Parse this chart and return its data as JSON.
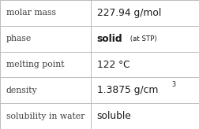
{
  "rows": [
    {
      "label": "molar mass",
      "value_parts": [
        {
          "text": "227.94 g/mol",
          "style": "normal"
        }
      ]
    },
    {
      "label": "phase",
      "value_parts": [
        {
          "text": "solid",
          "style": "bold"
        },
        {
          "text": " (at STP)",
          "style": "small"
        }
      ]
    },
    {
      "label": "melting point",
      "value_parts": [
        {
          "text": "122 °C",
          "style": "normal"
        }
      ]
    },
    {
      "label": "density",
      "value_parts": [
        {
          "text": "1.3875 g/cm",
          "style": "normal"
        },
        {
          "text": "3",
          "style": "super"
        }
      ]
    },
    {
      "label": "solubility in water",
      "value_parts": [
        {
          "text": "soluble",
          "style": "normal"
        }
      ]
    }
  ],
  "bg_color": "#ffffff",
  "border_color": "#bbbbbb",
  "label_color": "#404040",
  "value_color": "#1a1a1a",
  "label_fontsize": 7.8,
  "value_fontsize": 8.8,
  "small_fontsize": 6.2,
  "super_fontsize": 5.8,
  "col_split": 0.455,
  "fig_width": 2.53,
  "fig_height": 1.64,
  "dpi": 100
}
